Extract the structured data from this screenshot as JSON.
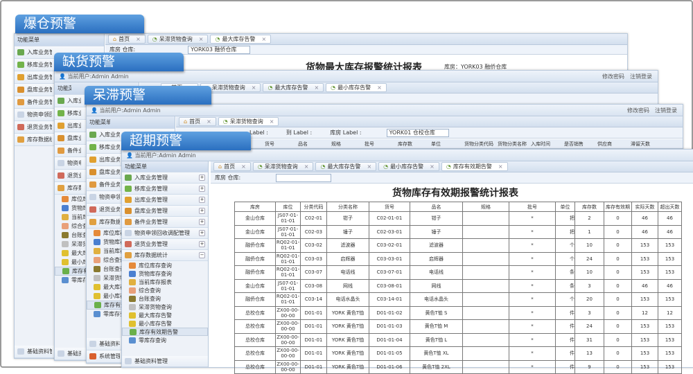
{
  "banners": [
    "爆仓预警",
    "缺货预警",
    "呆滞预警",
    "超期预警"
  ],
  "header": {
    "user": "当前用户:Admin Admin",
    "change_password": "修改密码",
    "logout": "注销登录"
  },
  "sidebar": {
    "title": "功能菜单",
    "items": [
      "入库业务管理",
      "移库业务管理",
      "出库业务管理",
      "盘库业务管理",
      "备件业务管理",
      "物资申领回收调配管理",
      "退货业务管理",
      "库存数据统计"
    ],
    "subitems": [
      "库位库存查询",
      "货物库存查询",
      "当前库存报表",
      "综合查询",
      "台账查询",
      "呆滞货物查询",
      "最大库存告警",
      "最小库存告警",
      "库存有效期告警",
      "零库存查询"
    ],
    "bottom": "基础资料管理",
    "bottom2": "系统管理"
  },
  "win1": {
    "tabs": [
      "首页",
      "呆滞货物查询",
      "最大库存告警"
    ],
    "filter_label": "库房 仓库:",
    "filter_value": "YORK03 融侨仓库",
    "title": "货物最大库存报警统计报表",
    "subtitle": "库房：YORK03 融侨仓库"
  },
  "win2": {
    "tabs": [
      "首页",
      "呆滞货物查询",
      "最大库存告警",
      "最小库存告警"
    ]
  },
  "win3": {
    "tabs": [
      "首页",
      "呆滞货物查询"
    ],
    "filter": [
      "Label :",
      "到 Label :",
      "库房 Label :"
    ],
    "filter_value": "YORK01 仓校仓库",
    "columns": [
      "库位编码",
      "货号",
      "品名",
      "规格",
      "批号",
      "库存数",
      "单位",
      "货物分类代码",
      "货物分类名称",
      "入库时间",
      "是否销售",
      "供应商",
      "滞留天数"
    ]
  },
  "win4": {
    "tabs": [
      "首页",
      "呆滞货物查询",
      "最大库存告警",
      "最小库存告警",
      "库存有效期告警"
    ],
    "filter_label": "库房 仓库:",
    "title": "货物库存有效期报警统计报表",
    "columns": [
      "库房",
      "库位",
      "分类代码",
      "分类名称",
      "货号",
      "品名",
      "规格",
      "批号",
      "单位",
      "库存数",
      "库存有效期",
      "实际天数",
      "超出天数"
    ],
    "rows": [
      [
        "金山仓库",
        "JS07-01-01-01",
        "C02-01",
        "钳子",
        "C02-01-01",
        "钳子",
        "",
        "*",
        "把",
        "2",
        "0",
        "46",
        "46"
      ],
      [
        "金山仓库",
        "JS07-01-01-01",
        "C02-03",
        "锤子",
        "C02-03-01",
        "锤子",
        "",
        "*",
        "把",
        "1",
        "0",
        "46",
        "46"
      ],
      [
        "融侨仓库",
        "RQ02-01-01-01",
        "C03-02",
        "滤波器",
        "C03-02-01",
        "滤波器",
        "",
        "*",
        "个",
        "10",
        "0",
        "153",
        "153"
      ],
      [
        "融侨仓库",
        "RQ02-01-01-01",
        "C03-03",
        "启辉器",
        "C03-03-01",
        "启辉器",
        "",
        "*",
        "个",
        "24",
        "0",
        "153",
        "153"
      ],
      [
        "融侨仓库",
        "RQ02-01-01-01",
        "C03-07",
        "电话线",
        "C03-07-01",
        "电话线",
        "",
        "*",
        "条",
        "10",
        "0",
        "153",
        "153"
      ],
      [
        "金山仓库",
        "JS07-01-01-01",
        "C03-08",
        "网线",
        "C03-08-01",
        "网线",
        "",
        "*",
        "条",
        "3",
        "0",
        "46",
        "46"
      ],
      [
        "融侨仓库",
        "RQ02-01-01-01",
        "C03-14",
        "电话水晶头",
        "C03-14-01",
        "电话水晶头",
        "",
        "*",
        "个",
        "20",
        "0",
        "153",
        "153"
      ],
      [
        "总校仓库",
        "ZX00-00-00-00",
        "D01-01",
        "YORK 黄色T恤",
        "D01-01-02",
        "黄色T恤 S",
        "",
        "*",
        "件",
        "3",
        "0",
        "12",
        "12"
      ],
      [
        "总校仓库",
        "ZX00-00-00-00",
        "D01-01",
        "YORK 黄色T恤",
        "D01-01-03",
        "黄色T恤 M",
        "",
        "*",
        "件",
        "24",
        "0",
        "153",
        "153"
      ],
      [
        "总校仓库",
        "ZX00-00-00-00",
        "D01-01",
        "YORK 黄色T恤",
        "D01-01-04",
        "黄色T恤 L",
        "",
        "*",
        "件",
        "31",
        "0",
        "153",
        "153"
      ],
      [
        "总校仓库",
        "ZX00-00-00-00",
        "D01-01",
        "YORK 黄色T恤",
        "D01-01-05",
        "黄色T恤 XL",
        "",
        "*",
        "件",
        "13",
        "0",
        "153",
        "153"
      ],
      [
        "总校仓库",
        "ZX00-00-00-00",
        "D01-01",
        "YORK 黄色T恤",
        "D01-01-06",
        "黄色T恤 2XL",
        "",
        "*",
        "件",
        "9",
        "0",
        "153",
        "153"
      ]
    ]
  }
}
